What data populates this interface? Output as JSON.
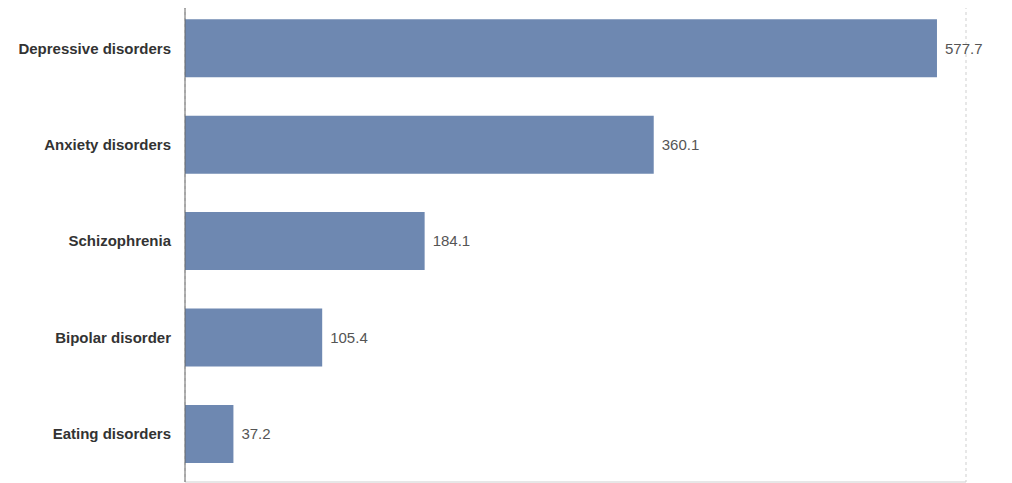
{
  "chart_data": {
    "type": "bar",
    "orientation": "horizontal",
    "categories": [
      "Depressive disorders",
      "Anxiety disorders",
      "Schizophrenia",
      "Bipolar disorder",
      "Eating disorders"
    ],
    "values": [
      577.7,
      360.1,
      184.1,
      105.4,
      37.2
    ],
    "color": "#6e88b1",
    "xlim": [
      0,
      600
    ],
    "xticks": [
      0,
      100,
      200,
      300,
      400,
      500,
      600
    ],
    "grid": true,
    "data_labels": true,
    "tick_labels": "y"
  }
}
